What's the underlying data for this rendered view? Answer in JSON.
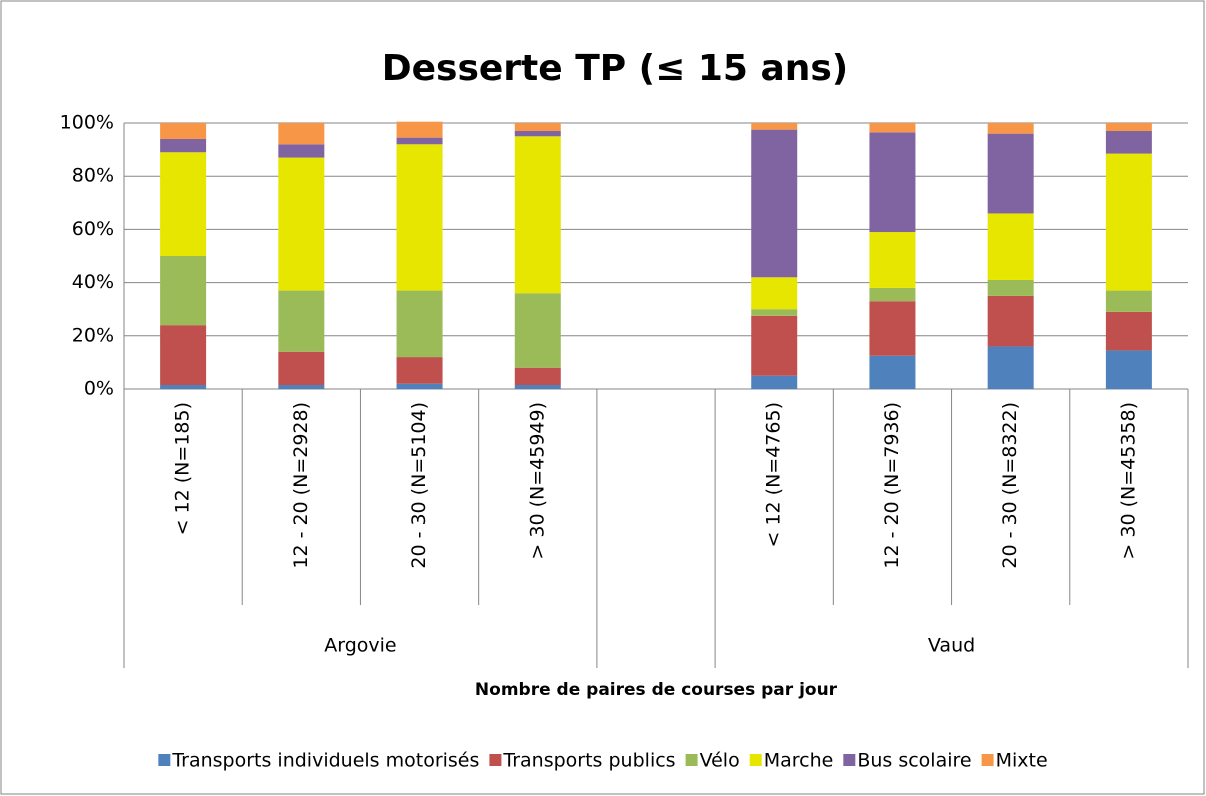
{
  "chart_data": {
    "type": "stacked_bar",
    "title": "Desserte TP (≤ 15 ans)",
    "xlabel": "Nombre de paires de courses par jour",
    "categories": [
      "< 12 (N=185)",
      "12 - 20 (N=2928)",
      "20 - 30 (N=5104)",
      "> 30 (N=45949)",
      null,
      "< 12 (N=4765)",
      "12 - 20 (N=7936)",
      "20 - 30 (N=8322)",
      "> 30 (N=45358)"
    ],
    "groups": [
      "Argovie",
      "Vaud"
    ],
    "series": [
      {
        "name": "Transports individuels motorisés",
        "color": "#4f81bd",
        "values": [
          1.5,
          1.5,
          2,
          1.5,
          null,
          5,
          12.5,
          16,
          14.5
        ]
      },
      {
        "name": "Transports publics",
        "color": "#c0504d",
        "values": [
          22.5,
          12.5,
          10,
          6.5,
          null,
          22.5,
          20.5,
          19,
          14.5
        ]
      },
      {
        "name": "Vélo",
        "color": "#9bbb59",
        "values": [
          26,
          23,
          25,
          28,
          null,
          2.5,
          5,
          6,
          8
        ]
      },
      {
        "name": "Marche",
        "color": "#e6e600",
        "values": [
          39,
          50,
          55,
          59,
          null,
          12,
          21,
          25,
          51.5
        ]
      },
      {
        "name": "Bus scolaire",
        "color": "#8064a2",
        "values": [
          5,
          5,
          2.5,
          2,
          null,
          55.5,
          37.5,
          30,
          8.5
        ]
      },
      {
        "name": "Mixte",
        "color": "#f79646",
        "values": [
          6,
          8,
          6,
          3,
          null,
          2.5,
          3.5,
          4,
          3
        ]
      }
    ],
    "ylim": [
      0,
      100
    ],
    "yticks": [
      {
        "value": 0,
        "label": "0%"
      },
      {
        "value": 20,
        "label": "20%"
      },
      {
        "value": 40,
        "label": "40%"
      },
      {
        "value": 60,
        "label": "60%"
      },
      {
        "value": 80,
        "label": "80%"
      },
      {
        "value": 100,
        "label": "100%"
      }
    ],
    "grid": true,
    "legend": "bottom"
  }
}
